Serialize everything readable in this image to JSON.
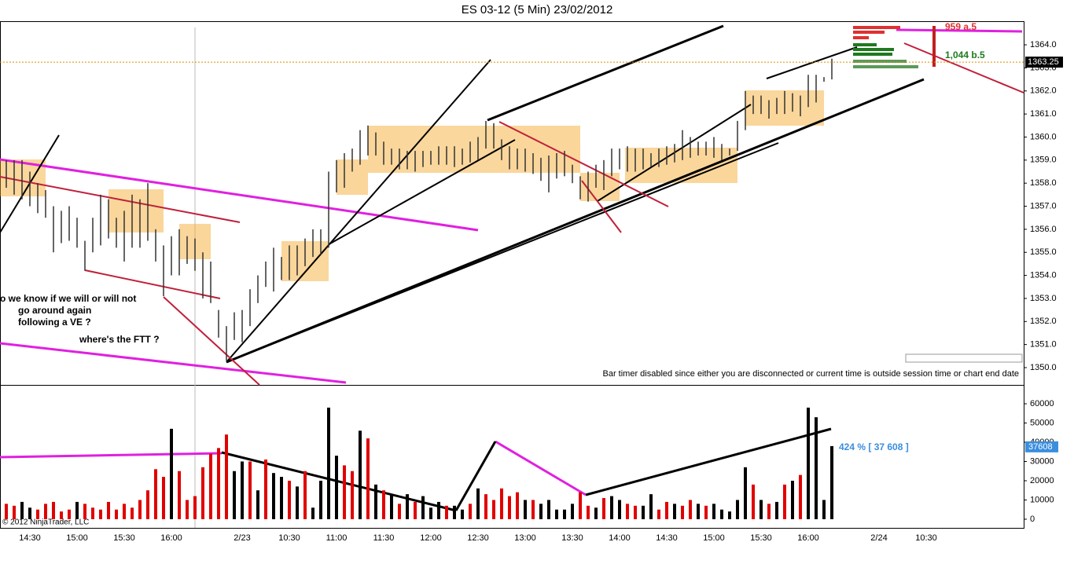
{
  "chart_data": [
    {
      "type": "hilo",
      "title": "ES 03-12 (5 Min)  23/02/2012",
      "color": "#333333",
      "ylim": [
        1349.25,
        1364.99
      ],
      "yticks": [
        {
          "value": 1350,
          "label": "1350.0"
        },
        {
          "value": 1351,
          "label": "1351.0"
        },
        {
          "value": 1352,
          "label": "1352.0"
        },
        {
          "value": 1353,
          "label": "1353.0"
        },
        {
          "value": 1354,
          "label": "1354.0"
        },
        {
          "value": 1355,
          "label": "1355.0"
        },
        {
          "value": 1356,
          "label": "1356.0"
        },
        {
          "value": 1357,
          "label": "1357.0"
        },
        {
          "value": 1358,
          "label": "1358.0"
        },
        {
          "value": 1359,
          "label": "1359.0"
        },
        {
          "value": 1360,
          "label": "1360.0"
        },
        {
          "value": 1361,
          "label": "1361.0"
        },
        {
          "value": 1362,
          "label": "1362.0"
        },
        {
          "value": 1363,
          "label": "1363.0"
        },
        {
          "value": 1364,
          "label": "1364.0"
        }
      ],
      "last_price": 1363.25,
      "last_price_color": "#e08a00",
      "high": [
        1359,
        1359,
        1359,
        1358.5,
        1358,
        1357.7,
        1357,
        1356.8,
        1357,
        1356.5,
        1355.5,
        1356.5,
        1357.5,
        1357.3,
        1356.5,
        1356.8,
        1357.5,
        1357.3,
        1358,
        1356,
        1355.3,
        1355.7,
        1356,
        1355.7,
        1355.6,
        1355,
        1354.6,
        1352.5,
        1351.8,
        1352.4,
        1352.5,
        1353.4,
        1354,
        1354.6,
        1355.2,
        1354.8,
        1355.3,
        1355.3,
        1355.6,
        1356,
        1356,
        1358.5,
        1359,
        1359.3,
        1359.5,
        1360.3,
        1360.5,
        1360.2,
        1359.8,
        1359.5,
        1359.5,
        1359.4,
        1359.4,
        1359.4,
        1359.4,
        1359.6,
        1359.6,
        1359.6,
        1359.5,
        1359.8,
        1360,
        1360.7,
        1360.6,
        1359.9,
        1359.6,
        1359.5,
        1359.5,
        1359.3,
        1359.1,
        1359.2,
        1359.3,
        1359.4,
        1358.8,
        1358.3,
        1358.5,
        1358.8,
        1359,
        1359.5,
        1359.5,
        1359.6,
        1359.5,
        1359.5,
        1359.3,
        1359.5,
        1359.6,
        1359.7,
        1360.3,
        1360,
        1359.8,
        1359.8,
        1360,
        1359.7,
        1359.5,
        1360.7,
        1362,
        1361.8,
        1361.8,
        1361.6,
        1361.7,
        1362,
        1361.9,
        1361.8,
        1362.7,
        1362.7,
        1362.6,
        1363.4,
        null,
        null,
        null,
        null,
        null,
        null,
        null,
        null,
        null,
        null,
        null,
        null
      ],
      "low": [
        1357.8,
        1357.5,
        1357.3,
        1357,
        1356.7,
        1356.5,
        1355,
        1355.4,
        1355.5,
        1355.2,
        1354.2,
        1355,
        1355.3,
        1355.6,
        1355.2,
        1354.6,
        1355.2,
        1355.2,
        1355.5,
        1354.6,
        1353.1,
        1354,
        1354,
        1354.5,
        1354.2,
        1353,
        1352.8,
        1351.3,
        1350.3,
        1351.2,
        1351.1,
        1351.8,
        1352.8,
        1353.5,
        1353.3,
        1353.8,
        1353.8,
        1354,
        1354.4,
        1354.8,
        1354.9,
        1355.2,
        1357.6,
        1357.8,
        1358.5,
        1358.8,
        1359.2,
        1359.2,
        1358.8,
        1358.8,
        1358.6,
        1358.6,
        1358.5,
        1358.7,
        1358.8,
        1358.8,
        1358.8,
        1358.7,
        1358.8,
        1358.9,
        1359,
        1359.5,
        1359.5,
        1359,
        1358.6,
        1358.6,
        1358.5,
        1358.4,
        1358.1,
        1357.6,
        1358.2,
        1358.3,
        1358,
        1357.3,
        1357.2,
        1357.8,
        1357.7,
        1358.3,
        1358.6,
        1358.5,
        1358.5,
        1358.6,
        1358.7,
        1358.7,
        1358.8,
        1358.9,
        1359,
        1359.1,
        1359.2,
        1359.2,
        1359.1,
        1359,
        1359.2,
        1359.4,
        1360.3,
        1361,
        1361,
        1360.8,
        1361,
        1361,
        1361.1,
        1360.9,
        1361.3,
        1361.5,
        1362.4,
        1362.5,
        null,
        null,
        null,
        null,
        null,
        null,
        null,
        null,
        null,
        null,
        null,
        null
      ],
      "annotations": [
        "o we know if we will or will not",
        "go around again",
        "following a VE ?",
        "where's the FTT ?",
        "Bar timer disabled since either you are disconnected or current time is outside session time or chart end date",
        "959 a.5",
        "1,044 b.5"
      ]
    },
    {
      "type": "bar",
      "ylim": [
        -4500,
        69400
      ],
      "yticks": [
        0,
        10000,
        20000,
        30000,
        40000,
        50000,
        60000
      ],
      "categories": [
        null,
        null,
        null,
        "14:30",
        null,
        null,
        null,
        null,
        null,
        "15:00",
        null,
        null,
        null,
        null,
        null,
        "15:30",
        null,
        null,
        null,
        null,
        null,
        "16:00",
        null,
        null,
        null,
        null,
        null,
        null,
        null,
        null,
        "2/23",
        null,
        null,
        null,
        null,
        null,
        "10:30",
        null,
        null,
        null,
        null,
        null,
        "11:00",
        null,
        null,
        null,
        null,
        null,
        "11:30",
        null,
        null,
        null,
        null,
        null,
        "12:00",
        null,
        null,
        null,
        null,
        null,
        "12:30",
        null,
        null,
        null,
        null,
        null,
        "13:00",
        null,
        null,
        null,
        null,
        null,
        "13:30",
        null,
        null,
        null,
        null,
        null,
        "14:00",
        null,
        null,
        null,
        null,
        null,
        "14:30",
        null,
        null,
        null,
        null,
        null,
        "15:00",
        null,
        null,
        null,
        null,
        null,
        "15:30",
        null,
        null,
        null,
        null,
        null,
        "16:00",
        null,
        null,
        null,
        null,
        null,
        null,
        null,
        null,
        "2/24",
        null,
        null,
        null,
        null,
        null,
        "10:30"
      ],
      "values": [
        8000,
        7000,
        9000,
        6000,
        5000,
        8000,
        9000,
        4000,
        5000,
        9000,
        8000,
        6000,
        5000,
        9000,
        5000,
        8000,
        6000,
        10000,
        15000,
        26000,
        22000,
        47000,
        25000,
        10000,
        12000,
        27000,
        34000,
        37000,
        44000,
        25000,
        30000,
        30000,
        15000,
        31000,
        24000,
        22000,
        20000,
        17000,
        25000,
        6000,
        20000,
        58000,
        33000,
        28000,
        25000,
        46000,
        42000,
        18000,
        15000,
        13000,
        8000,
        13000,
        9000,
        12000,
        6000,
        9000,
        7000,
        7000,
        5000,
        8000,
        16000,
        13000,
        10000,
        16000,
        12000,
        14000,
        10000,
        10000,
        8000,
        10000,
        5000,
        5000,
        8000,
        14000,
        7000,
        6000,
        11000,
        12000,
        10000,
        8000,
        7000,
        7000,
        13000,
        5000,
        9000,
        8000,
        7000,
        10000,
        8000,
        7000,
        8000,
        5000,
        4000,
        10000,
        27000,
        18000,
        10000,
        8000,
        9000,
        18000,
        20000,
        23000,
        58000,
        53000,
        10000,
        38000,
        null,
        null,
        null,
        null,
        null,
        null,
        null,
        null,
        null,
        null,
        null,
        null
      ],
      "colors": [
        "#e00000",
        "#e00000",
        "#000000",
        "#000000",
        "#e00000",
        "#e00000",
        "#e00000",
        "#e00000",
        "#e00000",
        "#000000",
        "#e00000",
        "#e00000",
        "#e00000",
        "#e00000",
        "#e00000",
        "#e00000",
        "#e00000",
        "#e00000",
        "#e00000",
        "#e00000",
        "#e00000",
        "#000000",
        "#e00000",
        "#e00000",
        "#e00000",
        "#e00000",
        "#e00000",
        "#e00000",
        "#e00000",
        "#000000",
        "#000000",
        "#e00000",
        "#000000",
        "#e00000",
        "#000000",
        "#000000",
        "#e00000",
        "#000000",
        "#e00000",
        "#000000",
        "#000000",
        "#000000",
        "#000000",
        "#e00000",
        "#e00000",
        "#000000",
        "#e00000",
        "#000000",
        "#e00000",
        "#000000",
        "#e00000",
        "#000000",
        "#e00000",
        "#000000",
        "#000000",
        "#000000",
        "#e00000",
        "#000000",
        "#000000",
        "#e00000",
        "#000000",
        "#e00000",
        "#e00000",
        "#e00000",
        "#e00000",
        "#e00000",
        "#000000",
        "#e00000",
        "#000000",
        "#000000",
        "#000000",
        "#000000",
        "#000000",
        "#e00000",
        "#e00000",
        "#000000",
        "#e00000",
        "#000000",
        "#000000",
        "#e00000",
        "#e00000",
        "#000000",
        "#000000",
        "#e00000",
        "#e00000",
        "#000000",
        "#e00000",
        "#e00000",
        "#000000",
        "#e00000",
        "#000000",
        "#000000",
        "#000000",
        "#000000",
        "#000000",
        "#e00000",
        "#000000",
        "#e00000",
        "#000000",
        "#e00000",
        "#000000",
        "#e00000",
        "#000000",
        "#000000",
        "#000000",
        "#000000",
        null,
        null,
        null,
        null,
        null,
        null,
        null,
        null,
        null,
        null,
        null,
        null
      ],
      "last_value": 37608,
      "last_value_color": "#3a8ede",
      "annotations": [
        "424 % [ 37 608 ]",
        "© 2012 NinjaTrader, LLC"
      ]
    }
  ]
}
